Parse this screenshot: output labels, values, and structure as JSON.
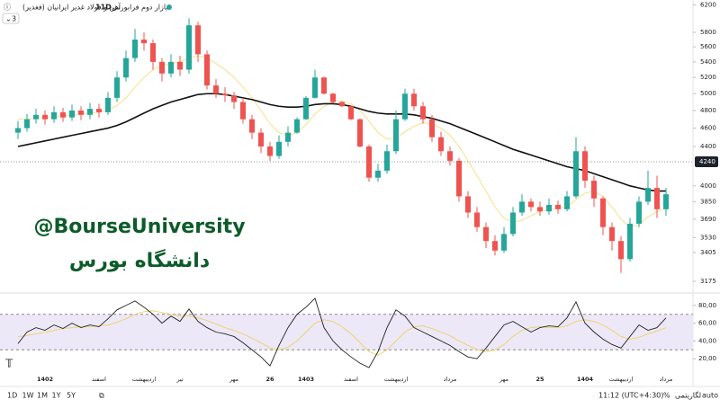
{
  "chart_data": [
    {
      "type": "candlestick",
      "log": true,
      "title": "آهن و فولاد غدیر ایرانیان (فغدیر)",
      "interval": "11D",
      "exchange": "بازار دوم فرابورس",
      "indicator_count": "3",
      "watermark": "@BourseUniversity",
      "watermark_sub": "دانشگاه بورس",
      "up_color": "#26a69a",
      "down_color": "#ef5350",
      "categories": [
        null,
        null,
        null,
        "1402",
        null,
        null,
        null,
        null,
        null,
        "اسفند",
        null,
        null,
        null,
        null,
        "اردیبهشت",
        null,
        null,
        null,
        "تیر",
        null,
        null,
        null,
        null,
        null,
        "مهر",
        null,
        null,
        null,
        "26",
        null,
        null,
        null,
        "1403",
        null,
        null,
        null,
        null,
        "اسفند",
        null,
        null,
        null,
        null,
        "اردیبهشت",
        null,
        null,
        null,
        null,
        null,
        "مرداد",
        null,
        null,
        null,
        null,
        null,
        "مهر",
        null,
        null,
        null,
        "25",
        null,
        null,
        null,
        null,
        "1404",
        null,
        null,
        null,
        "اردیبهشت",
        null,
        null,
        null,
        null,
        "مرداد"
      ],
      "open": [
        4550,
        4600,
        4700,
        4750,
        4700,
        4780,
        4720,
        4800,
        4750,
        4820,
        4780,
        4950,
        5200,
        5450,
        5700,
        5650,
        5400,
        5250,
        5400,
        5300,
        5900,
        5500,
        5100,
        5000,
        4980,
        4900,
        4700,
        4550,
        4400,
        4300,
        4450,
        4550,
        4700,
        4950,
        5200,
        5000,
        4900,
        4850,
        4700,
        4400,
        4080,
        4150,
        4350,
        4700,
        5000,
        4850,
        4700,
        4500,
        4350,
        4250,
        3900,
        3750,
        3620,
        3500,
        3420,
        3560,
        3750,
        3850,
        3800,
        3760,
        3820,
        3780,
        3900,
        4350,
        4050,
        3880,
        3620,
        3500,
        3350,
        3650,
        3850,
        3980,
        3780
      ],
      "high": [
        4680,
        4760,
        4820,
        4800,
        4850,
        4830,
        4870,
        4850,
        4890,
        4880,
        5020,
        5280,
        5550,
        5850,
        5800,
        5700,
        5450,
        5500,
        5480,
        6000,
        5950,
        5550,
        5180,
        5080,
        5020,
        4950,
        4750,
        4600,
        4450,
        4520,
        4620,
        4720,
        4970,
        5300,
        5210,
        5010,
        4910,
        4860,
        4710,
        4420,
        4220,
        4420,
        4800,
        5060,
        5060,
        4900,
        4750,
        4560,
        4400,
        4280,
        3950,
        3800,
        3660,
        3550,
        3620,
        3800,
        3920,
        3880,
        3850,
        3880,
        3860,
        3950,
        4500,
        4400,
        4100,
        3900,
        3660,
        3540,
        3700,
        3900,
        4150,
        4100,
        3980
      ],
      "low": [
        4480,
        4560,
        4650,
        4640,
        4660,
        4670,
        4680,
        4690,
        4700,
        4720,
        4750,
        4900,
        5150,
        5400,
        5550,
        5300,
        5150,
        5200,
        5220,
        5250,
        5400,
        5050,
        4950,
        4900,
        4820,
        4650,
        4480,
        4330,
        4250,
        4270,
        4400,
        4540,
        4690,
        4940,
        4990,
        4890,
        4840,
        4690,
        4390,
        4040,
        4040,
        4120,
        4320,
        4680,
        4800,
        4650,
        4450,
        4300,
        4200,
        3850,
        3700,
        3580,
        3440,
        3380,
        3400,
        3540,
        3720,
        3760,
        3720,
        3730,
        3740,
        3760,
        3880,
        3980,
        3800,
        3550,
        3420,
        3240,
        3330,
        3620,
        3820,
        3700,
        3720
      ],
      "close": [
        4600,
        4700,
        4750,
        4700,
        4780,
        4720,
        4800,
        4750,
        4820,
        4780,
        4950,
        5200,
        5450,
        5700,
        5650,
        5400,
        5250,
        5400,
        5300,
        5900,
        5500,
        5100,
        5000,
        4980,
        4900,
        4700,
        4550,
        4400,
        4300,
        4450,
        4550,
        4700,
        4950,
        5200,
        5000,
        4900,
        4850,
        4700,
        4400,
        4080,
        4150,
        4350,
        4700,
        5000,
        4850,
        4700,
        4500,
        4350,
        4250,
        3900,
        3750,
        3620,
        3500,
        3420,
        3560,
        3750,
        3850,
        3800,
        3760,
        3820,
        3780,
        3900,
        4350,
        4050,
        3880,
        3620,
        3500,
        3350,
        3650,
        3850,
        3980,
        3780,
        3920
      ],
      "overlays": [
        {
          "color": "#f5e08a",
          "values": [
            4700,
            4700,
            4710,
            4720,
            4730,
            4740,
            4750,
            4760,
            4770,
            4780,
            4800,
            4860,
            4950,
            5080,
            5200,
            5300,
            5350,
            5380,
            5400,
            5450,
            5480,
            5450,
            5380,
            5300,
            5200,
            5080,
            4950,
            4800,
            4650,
            4550,
            4520,
            4550,
            4640,
            4760,
            4850,
            4900,
            4910,
            4880,
            4800,
            4680,
            4550,
            4480,
            4490,
            4560,
            4620,
            4660,
            4650,
            4600,
            4520,
            4400,
            4250,
            4100,
            3950,
            3800,
            3700,
            3660,
            3680,
            3720,
            3760,
            3780,
            3790,
            3800,
            3870,
            3930,
            3950,
            3900,
            3800,
            3690,
            3620,
            3640,
            3710,
            3760,
            3790
          ]
        },
        {
          "color": "#111111",
          "values": [
            4400,
            4420,
            4440,
            4460,
            4480,
            4500,
            4520,
            4540,
            4560,
            4580,
            4600,
            4630,
            4670,
            4720,
            4770,
            4820,
            4860,
            4900,
            4930,
            4960,
            4990,
            5000,
            5000,
            4990,
            4970,
            4950,
            4930,
            4900,
            4870,
            4850,
            4840,
            4840,
            4850,
            4870,
            4880,
            4880,
            4870,
            4850,
            4820,
            4790,
            4770,
            4760,
            4760,
            4760,
            4750,
            4730,
            4710,
            4680,
            4650,
            4610,
            4570,
            4530,
            4490,
            4450,
            4410,
            4370,
            4340,
            4310,
            4280,
            4250,
            4220,
            4190,
            4170,
            4150,
            4120,
            4090,
            4060,
            4030,
            4000,
            3980,
            3960,
            3950,
            3950
          ]
        }
      ],
      "last_price": 4240,
      "ylim": [
        3100,
        6300
      ],
      "yticks": [
        3175,
        3405,
        3530,
        3690,
        3850,
        4000,
        4400,
        4600,
        4800,
        5000,
        5200,
        5400,
        5600,
        5800,
        6200
      ]
    },
    {
      "type": "line",
      "series": [
        {
          "color": "#222222",
          "values": [
            37,
            50,
            55,
            52,
            58,
            54,
            60,
            55,
            58,
            56,
            65,
            75,
            80,
            85,
            78,
            70,
            60,
            68,
            62,
            76,
            62,
            55,
            50,
            48,
            45,
            38,
            30,
            22,
            12,
            35,
            55,
            70,
            78,
            88,
            55,
            40,
            30,
            22,
            15,
            10,
            28,
            55,
            75,
            68,
            55,
            50,
            45,
            40,
            35,
            28,
            22,
            20,
            32,
            45,
            58,
            62,
            56,
            50,
            55,
            57,
            56,
            66,
            84,
            60,
            50,
            42,
            36,
            32,
            45,
            58,
            52,
            55,
            66
          ]
        },
        {
          "color": "#f0d060",
          "values": [
            45,
            46,
            48,
            50,
            52,
            54,
            55,
            56,
            56,
            57,
            58,
            61,
            65,
            70,
            73,
            74,
            72,
            70,
            68,
            68,
            66,
            63,
            59,
            55,
            52,
            48,
            43,
            38,
            32,
            30,
            33,
            40,
            50,
            60,
            64,
            62,
            56,
            48,
            38,
            28,
            24,
            30,
            40,
            50,
            56,
            57,
            54,
            50,
            46,
            40,
            35,
            30,
            28,
            30,
            36,
            45,
            52,
            55,
            56,
            55,
            55,
            57,
            62,
            64,
            62,
            58,
            52,
            45,
            42,
            44,
            48,
            51,
            55
          ]
        }
      ],
      "bands": [
        30,
        70
      ],
      "band_color": "#ece8f8",
      "ylim": [
        6,
        93
      ],
      "yticks": [
        {
          "value": 20,
          "label": "20,00"
        },
        {
          "value": 40,
          "label": "40,00"
        },
        {
          "value": 60,
          "label": "60,00"
        },
        {
          "value": 80,
          "label": "80,00"
        }
      ]
    }
  ],
  "toolbar": {
    "ranges": [
      "1D",
      "1W",
      "1M",
      "1Y",
      "5Y"
    ],
    "clock": "11:12 (UTC+4:30)",
    "percent": "%",
    "log": "لگاریتمی",
    "auto": "auto"
  }
}
